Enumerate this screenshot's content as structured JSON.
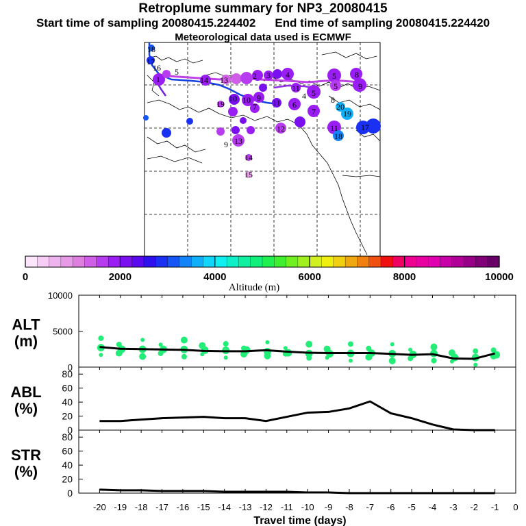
{
  "header": {
    "title": "Retroplume summary for NP3_20080415",
    "start_label": "Start time of sampling 20080415.224402",
    "end_label": "End time of sampling 20080415.224420",
    "met_label": "Meteorological data used is ECMWF"
  },
  "colorbar": {
    "label": "Altitude (m)",
    "ticks": [
      "0",
      "2000",
      "4000",
      "6000",
      "8000",
      "10000"
    ],
    "colors": [
      "#fbe6fb",
      "#f5cdf5",
      "#eeb4ee",
      "#e79be7",
      "#df7fdf",
      "#cf5fe6",
      "#b83cef",
      "#9a1df3",
      "#7a0ff0",
      "#5a08ee",
      "#2e10ee",
      "#1a30f2",
      "#1556f5",
      "#1383f8",
      "#11aefa",
      "#10d6fb",
      "#10f0f0",
      "#10f0c8",
      "#10f0a0",
      "#10f07a",
      "#20f050",
      "#40f030",
      "#70f020",
      "#a0f020",
      "#d0f020",
      "#f0f010",
      "#f0d010",
      "#f0a810",
      "#f08010",
      "#f05010",
      "#f01010",
      "#f00060",
      "#f00090",
      "#e800a0",
      "#e000b0",
      "#c800a8",
      "#b00098",
      "#980088",
      "#800078",
      "#680068"
    ]
  },
  "map": {
    "trajectory_labels": [
      "1",
      "2",
      "3",
      "4",
      "5",
      "6",
      "7",
      "8",
      "9",
      "10",
      "11",
      "12",
      "13",
      "14",
      "15",
      "16",
      "17",
      "18",
      "19",
      "20"
    ]
  },
  "chart_data": [
    {
      "type": "line",
      "panel": "ALT",
      "ylabel_line1": "ALT",
      "ylabel_line2": "(m)",
      "ylim": [
        0,
        10000
      ],
      "yticks": [
        "10000",
        "5000",
        "0"
      ],
      "x": [
        -20,
        -19,
        -18,
        -17,
        -16,
        -15,
        -14,
        -13,
        -12,
        -11,
        -10,
        -9,
        -8,
        -7,
        -6,
        -5,
        -4,
        -3,
        -2,
        -1
      ],
      "values": [
        2800,
        2550,
        2500,
        2450,
        2400,
        2250,
        2200,
        2200,
        2350,
        2150,
        2000,
        1950,
        1950,
        1950,
        1850,
        1700,
        1800,
        1200,
        1150,
        1900
      ],
      "scatter_color": "#22ee77"
    },
    {
      "type": "line",
      "panel": "ABL",
      "ylabel_line1": "ABL",
      "ylabel_line2": "(%)",
      "ylim": [
        0,
        90
      ],
      "yticks": [
        "80",
        "60",
        "40",
        "20",
        "0"
      ],
      "x": [
        -20,
        -19,
        -18,
        -17,
        -16,
        -15,
        -14,
        -13,
        -12,
        -11,
        -10,
        -9,
        -8,
        -7,
        -6,
        -5,
        -4,
        -3,
        -2,
        -1
      ],
      "values": [
        13,
        13,
        15,
        17,
        18,
        19,
        17,
        17,
        13,
        19,
        25,
        26,
        31,
        41,
        24,
        17,
        8,
        1,
        0,
        0
      ]
    },
    {
      "type": "line",
      "panel": "STR",
      "ylabel_line1": "STR",
      "ylabel_line2": "(%)",
      "ylim": [
        0,
        90
      ],
      "yticks": [
        "80",
        "60",
        "40",
        "20",
        "0"
      ],
      "x": [
        -20,
        -19,
        -18,
        -17,
        -16,
        -15,
        -14,
        -13,
        -12,
        -11,
        -10,
        -9,
        -8,
        -7,
        -6,
        -5,
        -4,
        -3,
        -2,
        -1
      ],
      "values": [
        5,
        4,
        4,
        3,
        3,
        3,
        2,
        2,
        2,
        2,
        1,
        1,
        0,
        0,
        0,
        0,
        0,
        0,
        0,
        0
      ]
    }
  ],
  "xaxis": {
    "label": "Travel time (days)",
    "ticks": [
      "-20",
      "-19",
      "-18",
      "-17",
      "-16",
      "-15",
      "-14",
      "-13",
      "-12",
      "-11",
      "-10",
      "-9",
      "-8",
      "-7",
      "-6",
      "-5",
      "-4",
      "-3",
      "-2",
      "-1",
      "0"
    ]
  }
}
